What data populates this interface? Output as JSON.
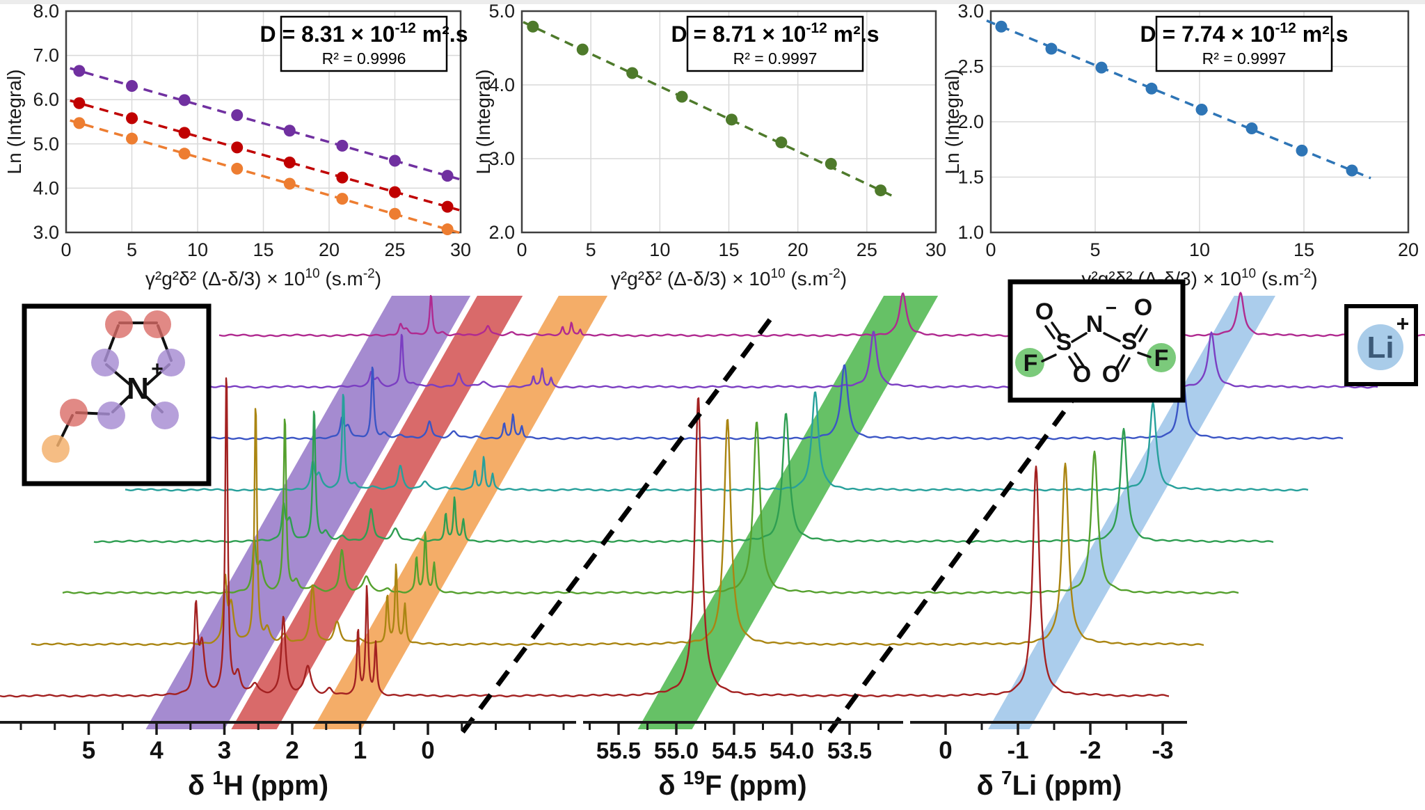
{
  "chart_data": {
    "diffusion_plots": [
      {
        "type": "scatter",
        "ylabel": "Ln (Integral)",
        "xlabel_pre": "γ²g²δ² (Δ-δ/3) × 10",
        "xlabel_sup1": "10",
        "xlabel_mid": " (s.m",
        "xlabel_sup2": "-2",
        "xlabel_end": ")",
        "xlim": [
          0,
          30
        ],
        "ylim": [
          3,
          8
        ],
        "xtick_vals": [
          0,
          5,
          10,
          15,
          20,
          25,
          30
        ],
        "xtick_labels": [
          "0",
          "5",
          "10",
          "15",
          "20",
          "25",
          "30"
        ],
        "ytick_vals": [
          3,
          4,
          5,
          6,
          7,
          8
        ],
        "ytick_labels": [
          "3.0",
          "4.0",
          "5.0",
          "6.0",
          "7.0",
          "8.0"
        ],
        "annotation": {
          "d_main": "D = 8.31 × 10",
          "d_sup": "-12",
          "d_unit": " m².s",
          "r2": "R² = 0.9996"
        },
        "series": [
          {
            "name": "cation-ring-NCH2-purple",
            "color": "#7030A0",
            "x": [
              1,
              5,
              9,
              13,
              17,
              21,
              25,
              29
            ],
            "y": [
              6.65,
              6.31,
              5.99,
              5.65,
              5.3,
              4.96,
              4.62,
              4.28
            ]
          },
          {
            "name": "cation-NCH3-red",
            "color": "#C00000",
            "x": [
              1,
              5,
              9,
              13,
              17,
              21,
              25,
              29
            ],
            "y": [
              5.92,
              5.58,
              5.25,
              4.92,
              4.58,
              4.24,
              3.91,
              3.58
            ]
          },
          {
            "name": "cation-CH3-orange",
            "color": "#ED7D31",
            "x": [
              1,
              5,
              9,
              13,
              17,
              21,
              25,
              29
            ],
            "y": [
              5.47,
              5.12,
              4.78,
              4.44,
              4.1,
              3.76,
              3.42,
              3.07
            ]
          }
        ]
      },
      {
        "type": "scatter",
        "ylabel": "Ln (Integral)",
        "xlabel_pre": "γ²g²δ² (Δ-δ/3) × 10",
        "xlabel_sup1": "10",
        "xlabel_mid": " (s.m",
        "xlabel_sup2": "-2",
        "xlabel_end": ")",
        "xlim": [
          0,
          30
        ],
        "ylim": [
          2,
          5
        ],
        "xtick_vals": [
          0,
          5,
          10,
          15,
          20,
          25,
          30
        ],
        "xtick_labels": [
          "0",
          "5",
          "10",
          "15",
          "20",
          "25",
          "30"
        ],
        "ytick_vals": [
          2,
          3,
          4,
          5
        ],
        "ytick_labels": [
          "2.0",
          "3.0",
          "4.0",
          "5.0"
        ],
        "annotation": {
          "d_main": "D = 8.71 × 10",
          "d_sup": "-12",
          "d_unit": " m².s",
          "r2": "R² = 0.9997"
        },
        "series": [
          {
            "name": "anion-19F-green",
            "color": "#4E7A2B",
            "x": [
              0.8,
              4.4,
              8.0,
              11.6,
              15.2,
              18.8,
              22.4,
              26.0
            ],
            "y": [
              4.79,
              4.48,
              4.16,
              3.84,
              3.53,
              3.22,
              2.93,
              2.57
            ]
          }
        ]
      },
      {
        "type": "scatter",
        "ylabel": "Ln (Integral)",
        "xlabel_pre": "γ²g²δ² (Δ-δ/3) × 10",
        "xlabel_sup1": "10",
        "xlabel_mid": " (s.m",
        "xlabel_sup2": "-2",
        "xlabel_end": ")",
        "xlim": [
          0,
          20
        ],
        "ylim": [
          1,
          3
        ],
        "xtick_vals": [
          0,
          5,
          10,
          15,
          20
        ],
        "xtick_labels": [
          "0",
          "5",
          "10",
          "15",
          "20"
        ],
        "ytick_vals": [
          1,
          1.5,
          2,
          2.5,
          3
        ],
        "ytick_labels": [
          "1.0",
          "1.5",
          "2.0",
          "2.5",
          "3.0"
        ],
        "annotation": {
          "d_main": "D = 7.74 × 10",
          "d_sup": "-12",
          "d_unit": " m².s",
          "r2": "R² = 0.9997"
        },
        "series": [
          {
            "name": "lithium-7Li-blue",
            "color": "#2E75B6",
            "x": [
              0.5,
              2.9,
              5.3,
              7.7,
              10.1,
              12.5,
              14.9,
              17.3
            ],
            "y": [
              2.86,
              2.66,
              2.49,
              2.3,
              2.11,
              1.94,
              1.74,
              1.56
            ]
          }
        ]
      }
    ],
    "nmr_stack": {
      "type": "nmr-waterfall",
      "num_traces": 8,
      "trace_colors_bottom_to_top": [
        "#A32121",
        "#AA8512",
        "#55A02E",
        "#2F9E52",
        "#27A09B",
        "#3B55C5",
        "#7B3EC2",
        "#B02A90"
      ],
      "decay_per_step": [
        0.3,
        0.28,
        0.24
      ],
      "base_heights": [
        470,
        430,
        330
      ],
      "axes": [
        {
          "nucleus": "1H",
          "title_delta": "δ ",
          "title_sup": "1",
          "title_rest": "H (ppm)",
          "tick_vals": [
            5,
            4,
            3,
            2,
            1,
            0
          ],
          "tick_labels": [
            "5",
            "4",
            "3",
            "2",
            "1",
            "0"
          ],
          "peaks": [
            {
              "ppm": 3.42,
              "h": 0.26,
              "w": 0.03
            },
            {
              "ppm": 3.33,
              "h": 0.15,
              "w": 0.045
            },
            {
              "ppm": 2.97,
              "h": 1.0,
              "w": 0.022
            },
            {
              "ppm": 2.8,
              "h": 0.06,
              "w": 0.045
            },
            {
              "ppm": 2.55,
              "h": 0.035,
              "w": 0.06
            },
            {
              "ppm": 2.13,
              "h": 0.24,
              "w": 0.038
            },
            {
              "ppm": 1.77,
              "h": 0.09,
              "w": 0.055
            },
            {
              "ppm": 1.45,
              "h": 0.02,
              "w": 0.05
            },
            {
              "ppm": 1.03,
              "h": 0.2,
              "w": 0.02
            },
            {
              "ppm": 0.9,
              "h": 0.33,
              "w": 0.02
            },
            {
              "ppm": 0.77,
              "h": 0.16,
              "w": 0.02
            }
          ]
        },
        {
          "nucleus": "19F",
          "title_delta": "δ ",
          "title_sup": "19",
          "title_rest": "F (ppm)",
          "tick_vals": [
            55.5,
            55.0,
            54.5,
            54.0,
            53.5
          ],
          "tick_labels": [
            "55.5",
            "55.0",
            "54.5",
            "54.0",
            "53.5"
          ],
          "peaks": [
            {
              "ppm": 54.81,
              "h": 1.0,
              "w": 0.035
            }
          ]
        },
        {
          "nucleus": "7Li",
          "title_delta": "δ ",
          "title_sup": "7",
          "title_rest": "Li (ppm)",
          "tick_vals": [
            0,
            -1,
            -2,
            -3
          ],
          "tick_labels": [
            "0",
            "-1",
            "-2",
            "-3"
          ],
          "peaks": [
            {
              "ppm": -1.25,
              "h": 1.0,
              "w": 0.055
            }
          ]
        }
      ],
      "highlight_bands": [
        {
          "axis": 0,
          "color": "#A58BD0",
          "ppm_range": [
            3.88,
            2.72
          ]
        },
        {
          "axis": 0,
          "color": "#D96A6A",
          "ppm_range": [
            2.62,
            1.95
          ]
        },
        {
          "axis": 0,
          "color": "#F4AD68",
          "ppm_range": [
            1.42,
            0.7
          ]
        },
        {
          "axis": 1,
          "color": "#66C166",
          "ppm_range": [
            55.17,
            54.7
          ]
        },
        {
          "axis": 2,
          "color": "#ABCDEC",
          "ppm_range": [
            -0.85,
            -1.42
          ]
        }
      ]
    },
    "insets": {
      "cation": {
        "n": "N",
        "plus": "+"
      },
      "anion": {
        "n": "N",
        "minus": "−",
        "s": "S",
        "o": "O",
        "f": "F"
      },
      "lithium": {
        "symbol": "Li",
        "plus": "+"
      }
    }
  }
}
